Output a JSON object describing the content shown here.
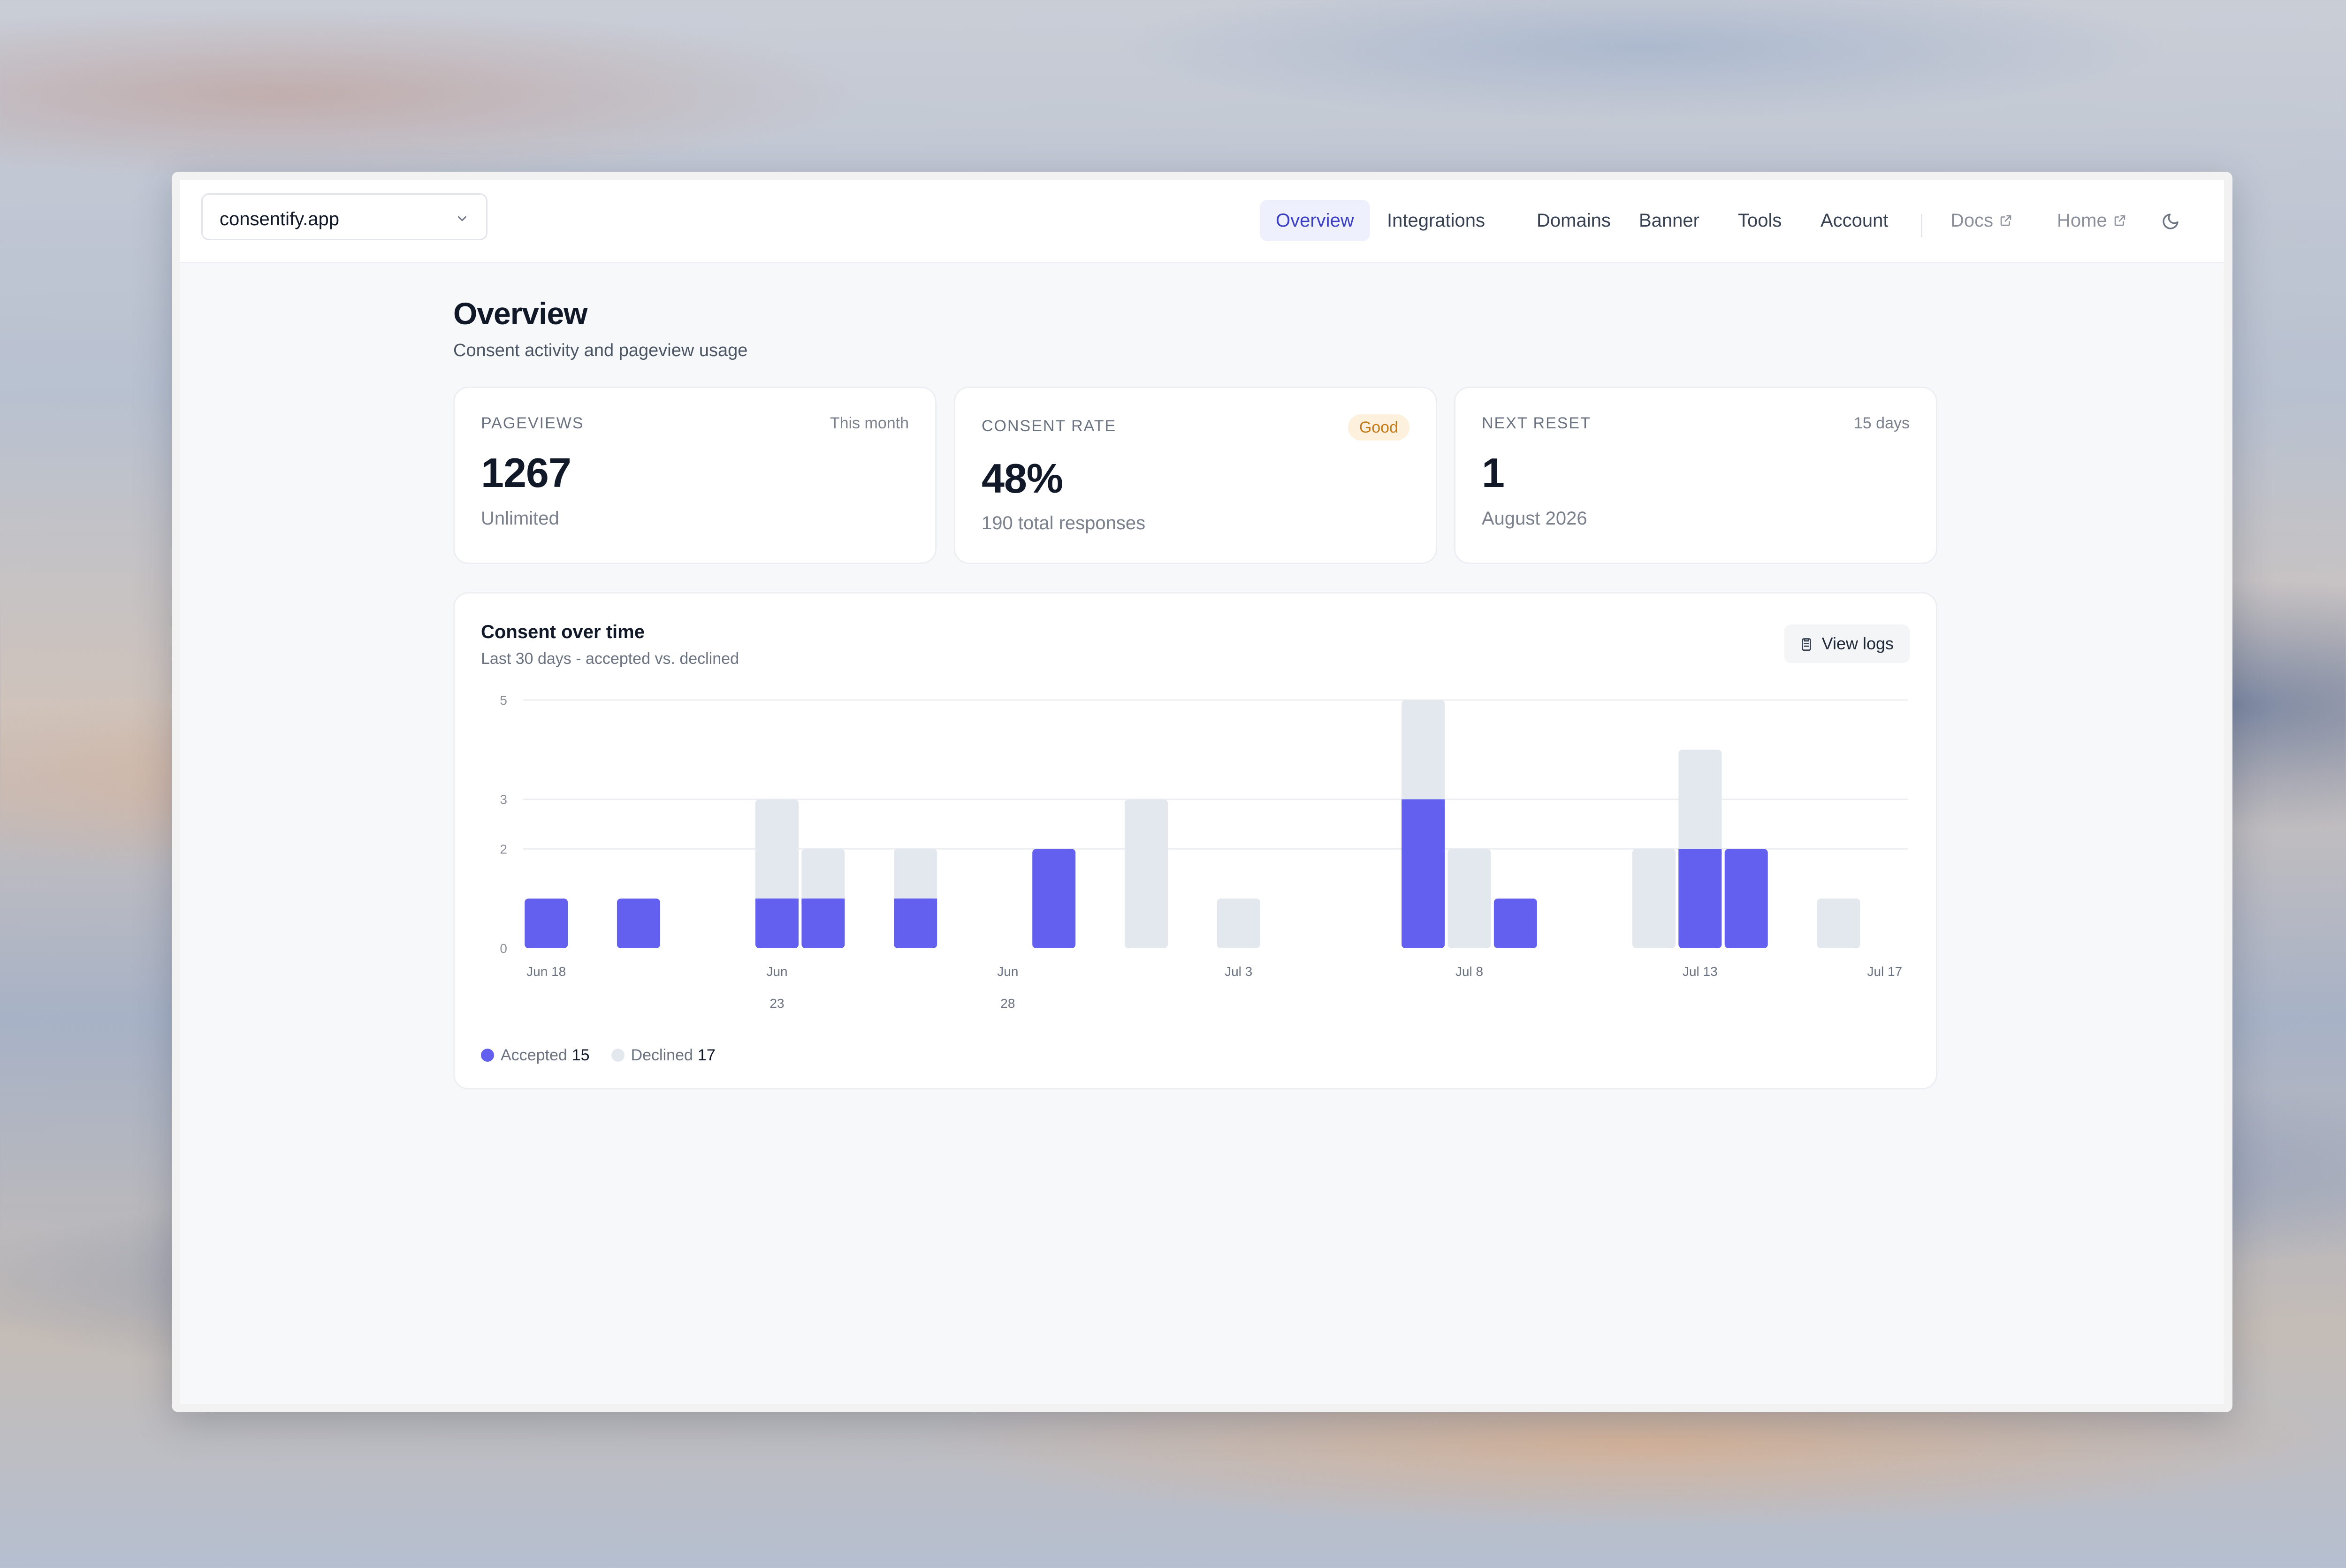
{
  "header": {
    "site": "consentify.app",
    "nav": [
      {
        "label": "Overview",
        "active": true
      },
      {
        "label": "Integrations"
      },
      {
        "label": "Domains"
      },
      {
        "label": "Banner"
      },
      {
        "label": "Tools"
      },
      {
        "label": "Account"
      }
    ],
    "external": [
      {
        "label": "Docs",
        "icon": "external-link-icon"
      },
      {
        "label": "Home",
        "icon": "external-link-icon"
      }
    ],
    "theme_icon": "moon-icon"
  },
  "page": {
    "title": "Overview",
    "subtitle": "Consent activity and pageview usage"
  },
  "stats": {
    "pageviews": {
      "label": "PAGEVIEWS",
      "period": "This month",
      "value": "1267",
      "foot": "Unlimited"
    },
    "consent": {
      "label": "CONSENT RATE",
      "badge": "Good",
      "value": "48%",
      "foot": "190 total responses"
    },
    "reset": {
      "label": "NEXT RESET",
      "remaining": "15 days",
      "value": "1",
      "foot": "August 2026"
    }
  },
  "chart": {
    "title": "Consent over time",
    "subtitle": "Last 30 days - accepted vs. declined",
    "view_logs_label": "View logs",
    "legend": {
      "accepted_label": "Accepted",
      "accepted_total": "15",
      "declined_label": "Declined",
      "declined_total": "17"
    }
  },
  "chart_data": {
    "type": "bar",
    "stacked": true,
    "title": "Consent over time",
    "subtitle": "Last 30 days - accepted vs. declined",
    "x": [
      "Jun 18",
      "Jun 19",
      "Jun 20",
      "Jun 21",
      "Jun 22",
      "Jun 23",
      "Jun 24",
      "Jun 25",
      "Jun 26",
      "Jun 27",
      "Jun 28",
      "Jun 29",
      "Jun 30",
      "Jul 1",
      "Jul 2",
      "Jul 3",
      "Jul 4",
      "Jul 5",
      "Jul 6",
      "Jul 7",
      "Jul 8",
      "Jul 9",
      "Jul 10",
      "Jul 11",
      "Jul 12",
      "Jul 13",
      "Jul 14",
      "Jul 15",
      "Jul 16",
      "Jul 17"
    ],
    "series": [
      {
        "name": "Accepted",
        "color": "#6360f0",
        "values": [
          1,
          0,
          1,
          0,
          0,
          1,
          1,
          0,
          1,
          0,
          0,
          2,
          0,
          0,
          0,
          0,
          0,
          0,
          0,
          3,
          0,
          1,
          0,
          0,
          0,
          2,
          2,
          0,
          0,
          0
        ]
      },
      {
        "name": "Declined",
        "color": "#e3e7ee",
        "values": [
          0,
          0,
          0,
          0,
          0,
          2,
          1,
          0,
          1,
          0,
          0,
          0,
          0,
          3,
          0,
          1,
          0,
          0,
          0,
          2,
          2,
          0,
          0,
          0,
          2,
          2,
          0,
          0,
          1,
          0
        ]
      }
    ],
    "y_ticks": [
      0,
      2,
      3,
      5
    ],
    "x_tick_labels": [
      {
        "index": 0,
        "lines": [
          "Jun 18"
        ]
      },
      {
        "index": 5,
        "lines": [
          "Jun",
          "23"
        ]
      },
      {
        "index": 10,
        "lines": [
          "Jun",
          "28"
        ]
      },
      {
        "index": 15,
        "lines": [
          "Jul 3"
        ]
      },
      {
        "index": 20,
        "lines": [
          "Jul 8"
        ]
      },
      {
        "index": 25,
        "lines": [
          "Jul 13"
        ]
      },
      {
        "index": 29,
        "lines": [
          "Jul 17"
        ]
      }
    ],
    "ylim": [
      0,
      5
    ],
    "grid": true,
    "legend_position": "bottom-left"
  }
}
